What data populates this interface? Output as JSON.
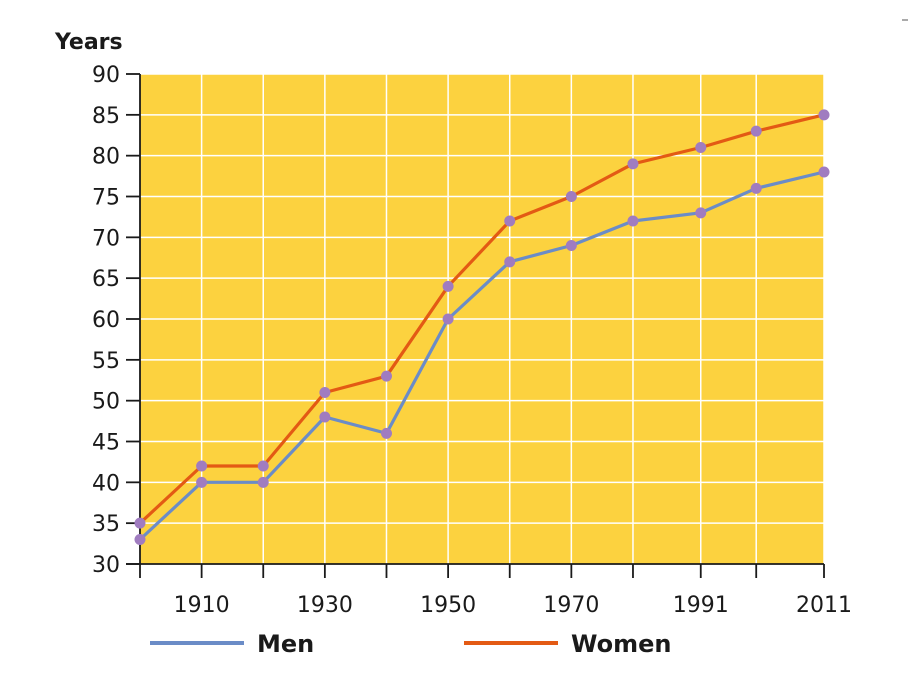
{
  "chart_data": {
    "type": "line",
    "ylabel": "Years",
    "xlabel": "",
    "title": "",
    "x": [
      1900,
      1910,
      1920,
      1930,
      1940,
      1950,
      1960,
      1970,
      1980,
      1991,
      2000,
      2011
    ],
    "x_tick_labels": [
      "1910",
      "1930",
      "1950",
      "1970",
      "1991",
      "2011"
    ],
    "ylim": [
      30,
      90
    ],
    "y_ticks": [
      30,
      35,
      40,
      45,
      50,
      55,
      60,
      65,
      70,
      75,
      80,
      85,
      90
    ],
    "grid": true,
    "legend_position": "bottom",
    "series": [
      {
        "name": "Men",
        "color": "#6b8cc7",
        "values": [
          33,
          40,
          40,
          48,
          46,
          60,
          67,
          69,
          72,
          73,
          76,
          78
        ]
      },
      {
        "name": "Women",
        "color": "#e35a14",
        "values": [
          35,
          42,
          42,
          51,
          53,
          64,
          72,
          75,
          79,
          81,
          83,
          85
        ]
      }
    ],
    "marker_color": "#a07cc0",
    "background_color": "#fcd23f",
    "grid_color": "#ffffff"
  }
}
